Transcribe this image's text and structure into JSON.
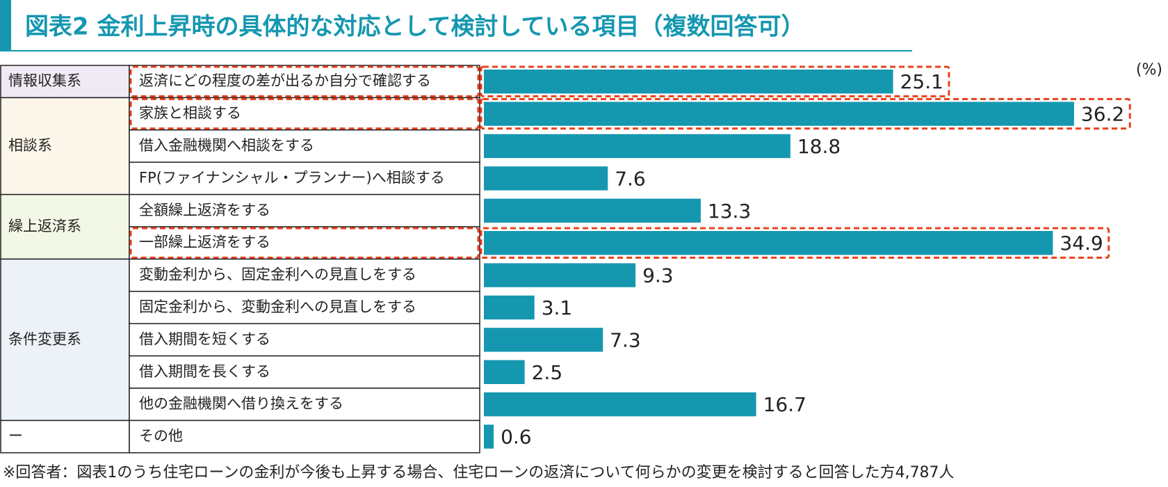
{
  "chart_data": {
    "type": "bar",
    "title": "図表2  金利上昇時の具体的な対応として検討している項目（複数回答可）",
    "unit": "(%)",
    "bar_color": "#1597b0",
    "highlight_color": "#e8401c",
    "groups": [
      {
        "name": "情報収集系",
        "color": "#efeaf4",
        "categories": [
          "返済にどの程度の差が出るか自分で確認する"
        ],
        "values": [
          25.1
        ],
        "highlight": [
          true
        ]
      },
      {
        "name": "相談系",
        "color": "#fdf6ea",
        "categories": [
          "家族と相談する",
          "借入金融機関へ相談をする",
          "FP(ファイナンシャル・プランナー)へ相談する"
        ],
        "values": [
          36.2,
          18.8,
          7.6
        ],
        "highlight": [
          true,
          false,
          false
        ]
      },
      {
        "name": "繰上返済系",
        "color": "#f3f8e6",
        "categories": [
          "全額繰上返済をする",
          "一部繰上返済をする"
        ],
        "values": [
          13.3,
          34.9
        ],
        "highlight": [
          false,
          true
        ]
      },
      {
        "name": "条件変更系",
        "color": "#edf2f8",
        "categories": [
          "変動金利から、固定金利への見直しをする",
          "固定金利から、変動金利への見直しをする",
          "借入期間を短くする",
          "借入期間を長くする",
          "他の金融機関へ借り換えをする"
        ],
        "values": [
          9.3,
          3.1,
          7.3,
          2.5,
          16.7
        ],
        "highlight": [
          false,
          false,
          false,
          false,
          false
        ]
      },
      {
        "name": "ー",
        "color": "#ffffff",
        "categories": [
          "その他"
        ],
        "values": [
          0.6
        ],
        "highlight": [
          false
        ]
      }
    ],
    "footnote": "※回答者：図表1のうち住宅ローンの金利が今後も上昇する場合、住宅ローンの返済について何らかの変更を検討すると回答した方4,787人"
  }
}
